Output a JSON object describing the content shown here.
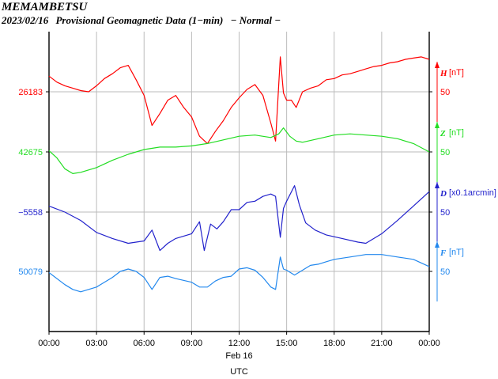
{
  "header": {
    "station": "MEMAMBETSU",
    "date": "2023/02/16",
    "description": "Provisional Geomagnetic Data (1−min)",
    "status": "− Normal −"
  },
  "chart_data": {
    "type": "line",
    "xlabel": "UTC",
    "x_date_label": "Feb 16",
    "x_ticks": [
      "00:00",
      "03:00",
      "06:00",
      "09:00",
      "12:00",
      "15:00",
      "18:00",
      "21:00",
      "00:00"
    ],
    "x_range_hours": [
      0,
      24
    ],
    "grid": true,
    "series": [
      {
        "name": "H",
        "unit": "[nT]",
        "color": "#ff0000",
        "base_label": "26183",
        "scale_label": "50",
        "hours": [
          0,
          0.5,
          1,
          1.5,
          2,
          2.5,
          3,
          3.5,
          4,
          4.5,
          5,
          5.5,
          6,
          6.5,
          7,
          7.5,
          8,
          8.5,
          9,
          9.5,
          10,
          10.5,
          11,
          11.5,
          12,
          12.5,
          13,
          13.5,
          14,
          14.3,
          14.6,
          14.8,
          15,
          15.3,
          15.6,
          16,
          16.5,
          17,
          17.5,
          18,
          18.5,
          19,
          19.5,
          20,
          20.5,
          21,
          21.5,
          22,
          22.5,
          23,
          23.5,
          24
        ],
        "values": [
          26196,
          26191,
          26188,
          26186,
          26184,
          26183,
          26188,
          26194,
          26198,
          26203,
          26205,
          26193,
          26180,
          26155,
          26165,
          26176,
          26180,
          26170,
          26162,
          26146,
          26140,
          26150,
          26159,
          26170,
          26178,
          26185,
          26189,
          26180,
          26157,
          26142,
          26212,
          26182,
          26176,
          26176,
          26170,
          26183,
          26186,
          26188,
          26193,
          26194,
          26197,
          26198,
          26200,
          26202,
          26204,
          26205,
          26207,
          26208,
          26210,
          26211,
          26212,
          26210
        ]
      },
      {
        "name": "Z",
        "unit": "[nT]",
        "color": "#22dd22",
        "base_label": "42675",
        "scale_label": "50",
        "hours": [
          0,
          0.5,
          1,
          1.5,
          2,
          3,
          4,
          5,
          6,
          7,
          8,
          9,
          10,
          11,
          12,
          13,
          14,
          14.5,
          14.8,
          15.2,
          15.6,
          16,
          17,
          18,
          19,
          20,
          21,
          22,
          23,
          24
        ],
        "values": [
          42676,
          42670,
          42661,
          42657,
          42658,
          42662,
          42668,
          42673,
          42677,
          42679,
          42679,
          42680,
          42682,
          42685,
          42688,
          42689,
          42687,
          42690,
          42695,
          42688,
          42684,
          42683,
          42686,
          42689,
          42690,
          42689,
          42688,
          42686,
          42682,
          42675
        ]
      },
      {
        "name": "D",
        "unit": "[x0.1arcmin]",
        "color": "#2222cc",
        "base_label": "−5558",
        "scale_label": "50",
        "hours": [
          0,
          1,
          2,
          3,
          4,
          5,
          6,
          6.5,
          7,
          7.5,
          8,
          9,
          9.5,
          9.8,
          10.2,
          10.6,
          11,
          11.5,
          12,
          12.5,
          13,
          13.5,
          14,
          14.3,
          14.6,
          14.8,
          15,
          15.5,
          15.8,
          16.2,
          16.8,
          17.5,
          18.5,
          19.5,
          20,
          21,
          22,
          23,
          24
        ],
        "values": [
          -5553,
          -5558,
          -5565,
          -5575,
          -5580,
          -5584,
          -5582,
          -5573,
          -5590,
          -5584,
          -5580,
          -5576,
          -5566,
          -5590,
          -5568,
          -5572,
          -5566,
          -5556,
          -5556,
          -5550,
          -5549,
          -5545,
          -5543,
          -5545,
          -5579,
          -5555,
          -5549,
          -5536,
          -5552,
          -5567,
          -5573,
          -5577,
          -5580,
          -5583,
          -5584,
          -5576,
          -5565,
          -5553,
          -5541
        ]
      },
      {
        "name": "F",
        "unit": "[nT]",
        "color": "#2288ee",
        "base_label": "50079",
        "scale_label": "50",
        "hours": [
          0,
          1,
          1.5,
          2,
          3,
          4,
          4.5,
          5,
          5.5,
          6,
          6.5,
          7,
          7.5,
          8,
          9,
          9.5,
          10,
          10.5,
          11,
          11.5,
          12,
          12.5,
          13,
          13.5,
          14,
          14.3,
          14.6,
          14.8,
          15,
          15.5,
          16,
          16.5,
          17,
          17.5,
          18,
          19,
          20,
          21,
          22,
          23,
          24
        ],
        "values": [
          50078,
          50068,
          50064,
          50062,
          50066,
          50074,
          50079,
          50081,
          50079,
          50074,
          50064,
          50074,
          50075,
          50073,
          50070,
          50066,
          50066,
          50071,
          50074,
          50075,
          50081,
          50082,
          50080,
          50074,
          50066,
          50064,
          50091,
          50081,
          50080,
          50076,
          50080,
          50084,
          50085,
          50087,
          50089,
          50091,
          50093,
          50093,
          50091,
          50089,
          50083
        ]
      }
    ]
  }
}
